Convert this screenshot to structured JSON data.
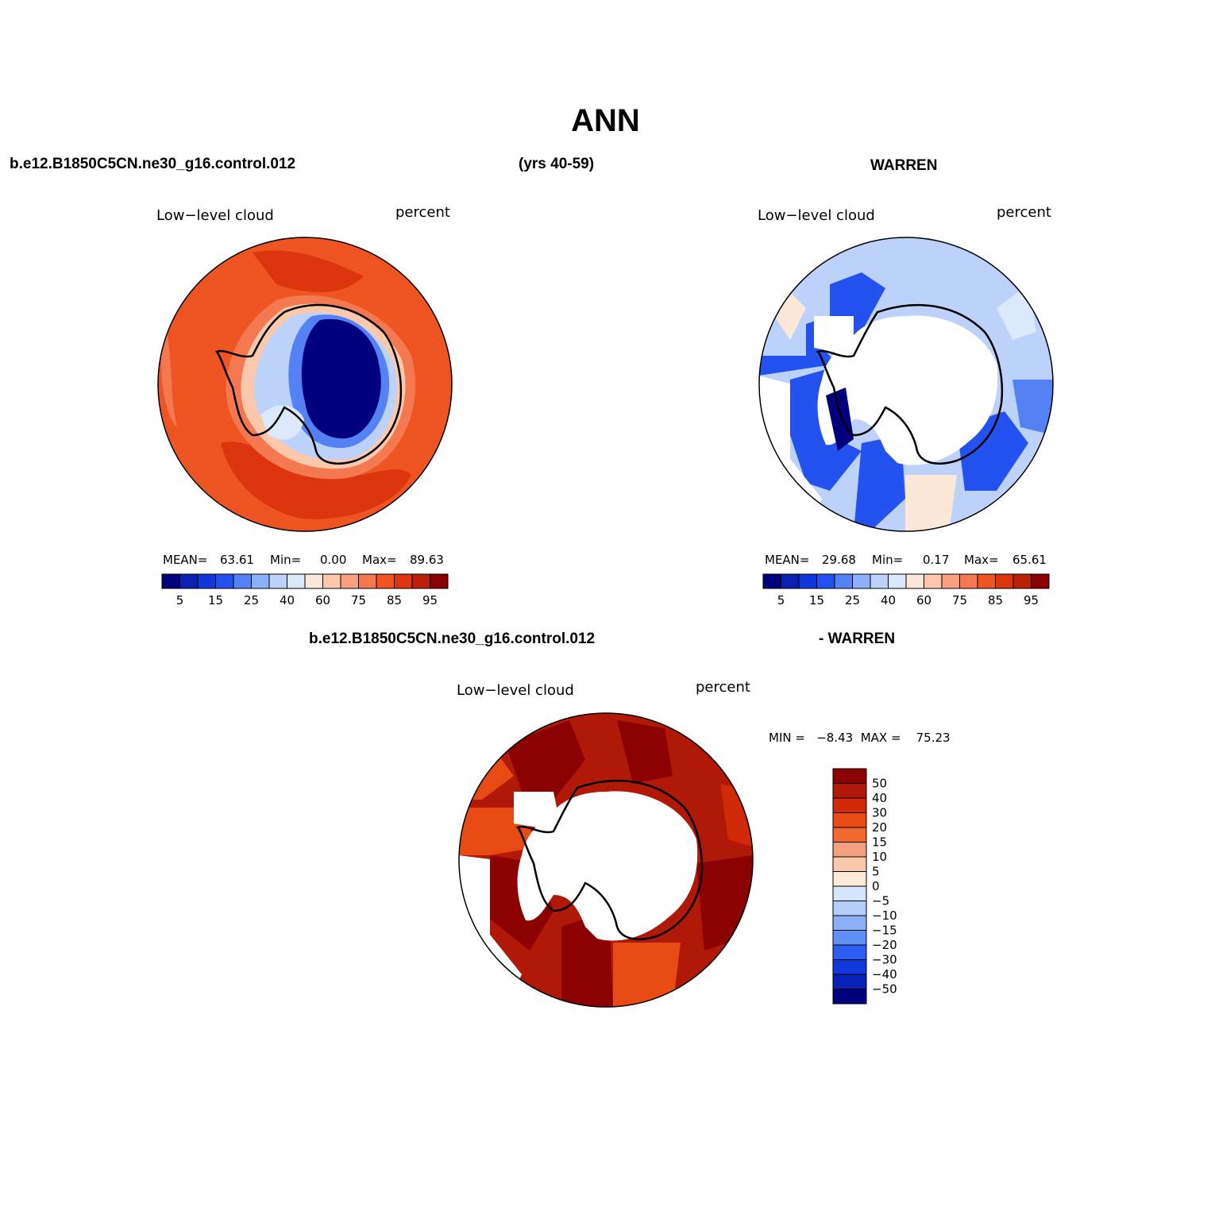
{
  "title": "ANN",
  "top_left": {
    "case": "b.e12.B1850C5CN.ne30_g16.control.012",
    "years": "(yrs 40-59)"
  },
  "top_right": {
    "obs": "WARREN"
  },
  "bottom": {
    "case": "b.e12.B1850C5CN.ne30_g16.control.012",
    "obs": "- WARREN"
  },
  "panels": [
    {
      "variable": "Low−level cloud",
      "units": "percent",
      "mean_label": "MEAN=",
      "mean": "63.61",
      "min_label": "Min=",
      "min": "0.00",
      "max_label": "Max=",
      "max": "89.63"
    },
    {
      "variable": "Low−level cloud",
      "units": "percent",
      "mean_label": "MEAN=",
      "mean": "29.68",
      "min_label": "Min=",
      "min": "0.17",
      "max_label": "Max=",
      "max": "65.61"
    },
    {
      "variable": "Low−level cloud",
      "units": "percent",
      "minmax": "MIN =   −8.43  MAX =    75.23"
    }
  ],
  "colorbar_field": {
    "colors": [
      "#00007f",
      "#0a20b0",
      "#0f37dc",
      "#2352f0",
      "#5482f5",
      "#8cb0f9",
      "#bcd2fb",
      "#dce8fc",
      "#fce8d8",
      "#fcc8ac",
      "#f8a080",
      "#f47850",
      "#ee5522",
      "#dd3510",
      "#bb2008",
      "#8b0000"
    ],
    "labels": [
      "5",
      "15",
      "25",
      "40",
      "60",
      "75",
      "85",
      "95"
    ]
  },
  "colorbar_diff": {
    "colors": [
      "#8b0000",
      "#b01808",
      "#d02a08",
      "#e84a14",
      "#f06a30",
      "#f4a080",
      "#fac8aa",
      "#fcead8",
      "#d4e6fc",
      "#b4cefa",
      "#8cb0f8",
      "#6090f6",
      "#2e5ef0",
      "#1038dc",
      "#0820b4",
      "#00007f"
    ],
    "labels": [
      "50",
      "40",
      "30",
      "20",
      "15",
      "10",
      "5",
      "0",
      "−5",
      "−10",
      "−15",
      "−20",
      "−30",
      "−40",
      "−50"
    ]
  }
}
